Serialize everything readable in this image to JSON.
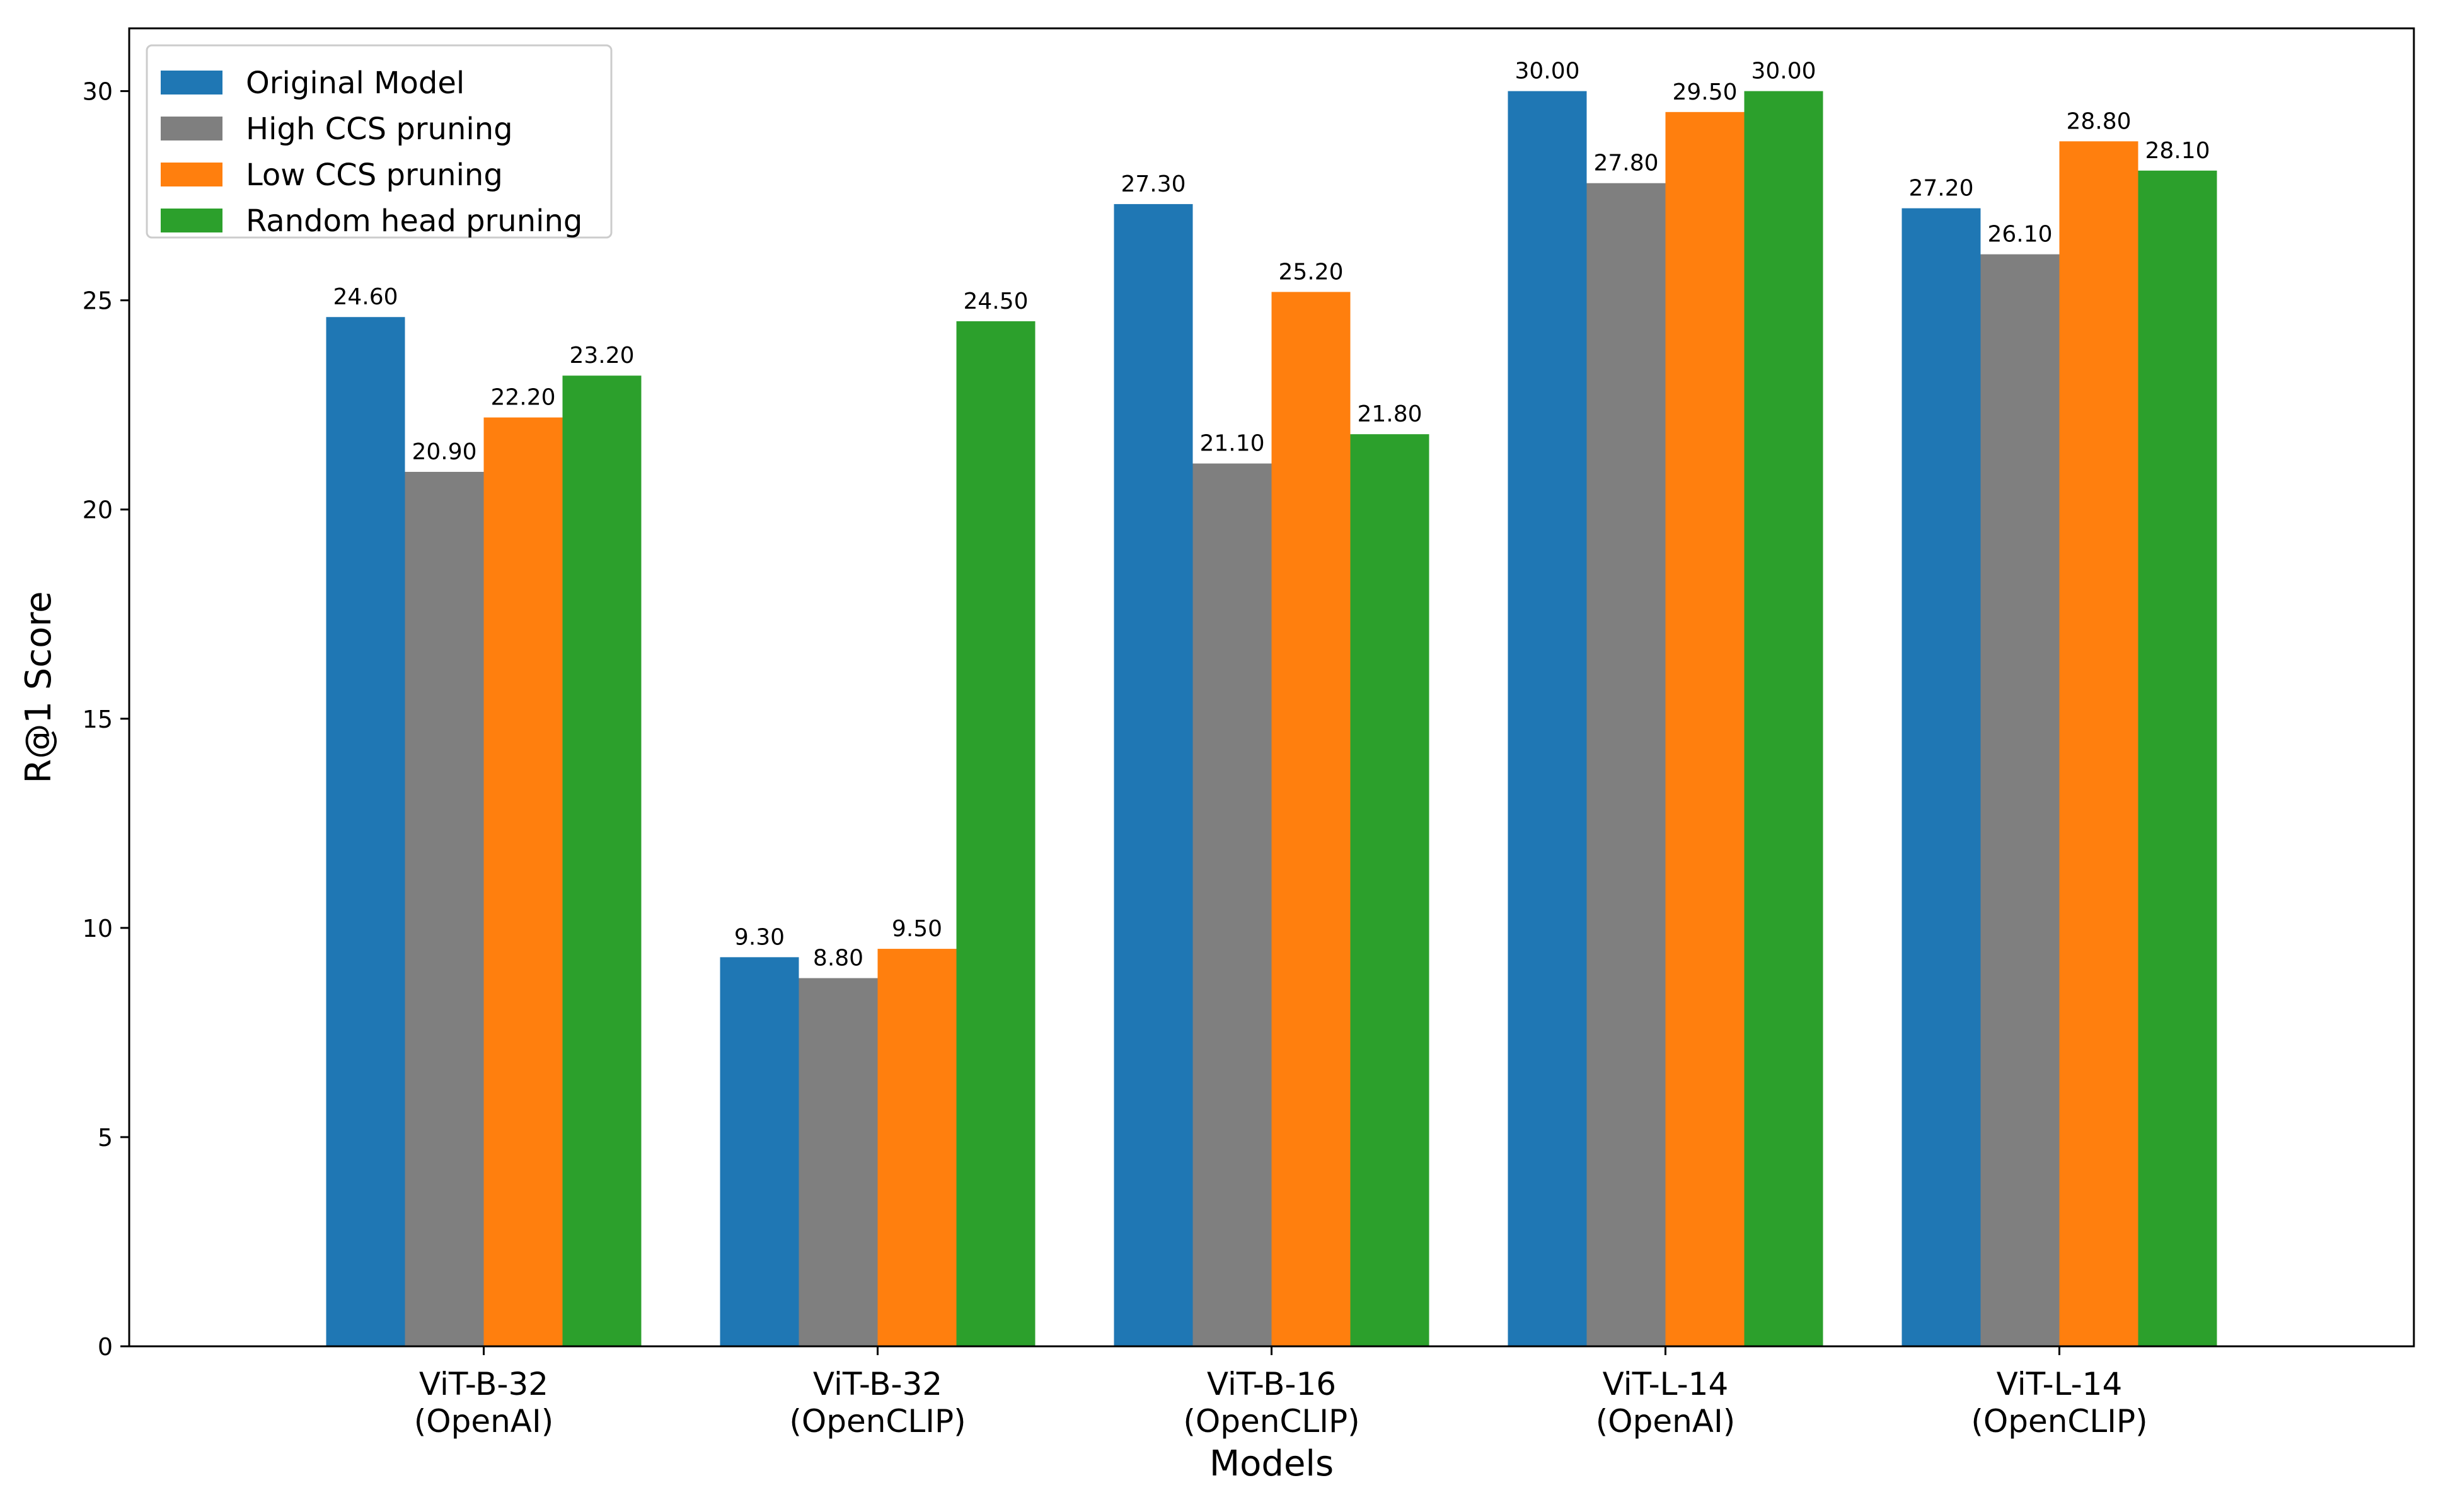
{
  "chart_data": {
    "type": "bar",
    "categories": [
      [
        "ViT-B-32",
        "(OpenAI)"
      ],
      [
        "ViT-B-32",
        "(OpenCLIP)"
      ],
      [
        "ViT-B-16",
        "(OpenCLIP)"
      ],
      [
        "ViT-L-14",
        "(OpenAI)"
      ],
      [
        "ViT-L-14",
        "(OpenCLIP)"
      ]
    ],
    "series": [
      {
        "name": "Original Model",
        "color": "#1f77b4",
        "values": [
          24.6,
          9.3,
          27.3,
          30.0,
          27.2
        ]
      },
      {
        "name": "High CCS pruning",
        "color": "#7f7f7f",
        "values": [
          20.9,
          8.8,
          21.1,
          27.8,
          26.1
        ]
      },
      {
        "name": "Low CCS pruning",
        "color": "#ff7f0e",
        "values": [
          22.2,
          9.5,
          25.2,
          29.5,
          28.8
        ]
      },
      {
        "name": "Random head pruning",
        "color": "#2ca02c",
        "values": [
          23.2,
          24.5,
          21.8,
          30.0,
          28.1
        ]
      }
    ],
    "title": "",
    "xlabel": "Models",
    "ylabel": "R@1 Score",
    "ylim": [
      0,
      31.5
    ],
    "yticks": [
      0,
      5,
      10,
      15,
      20,
      25,
      30
    ],
    "grid": false,
    "legend_position": "top-left",
    "value_label_format": "2 decimals"
  }
}
